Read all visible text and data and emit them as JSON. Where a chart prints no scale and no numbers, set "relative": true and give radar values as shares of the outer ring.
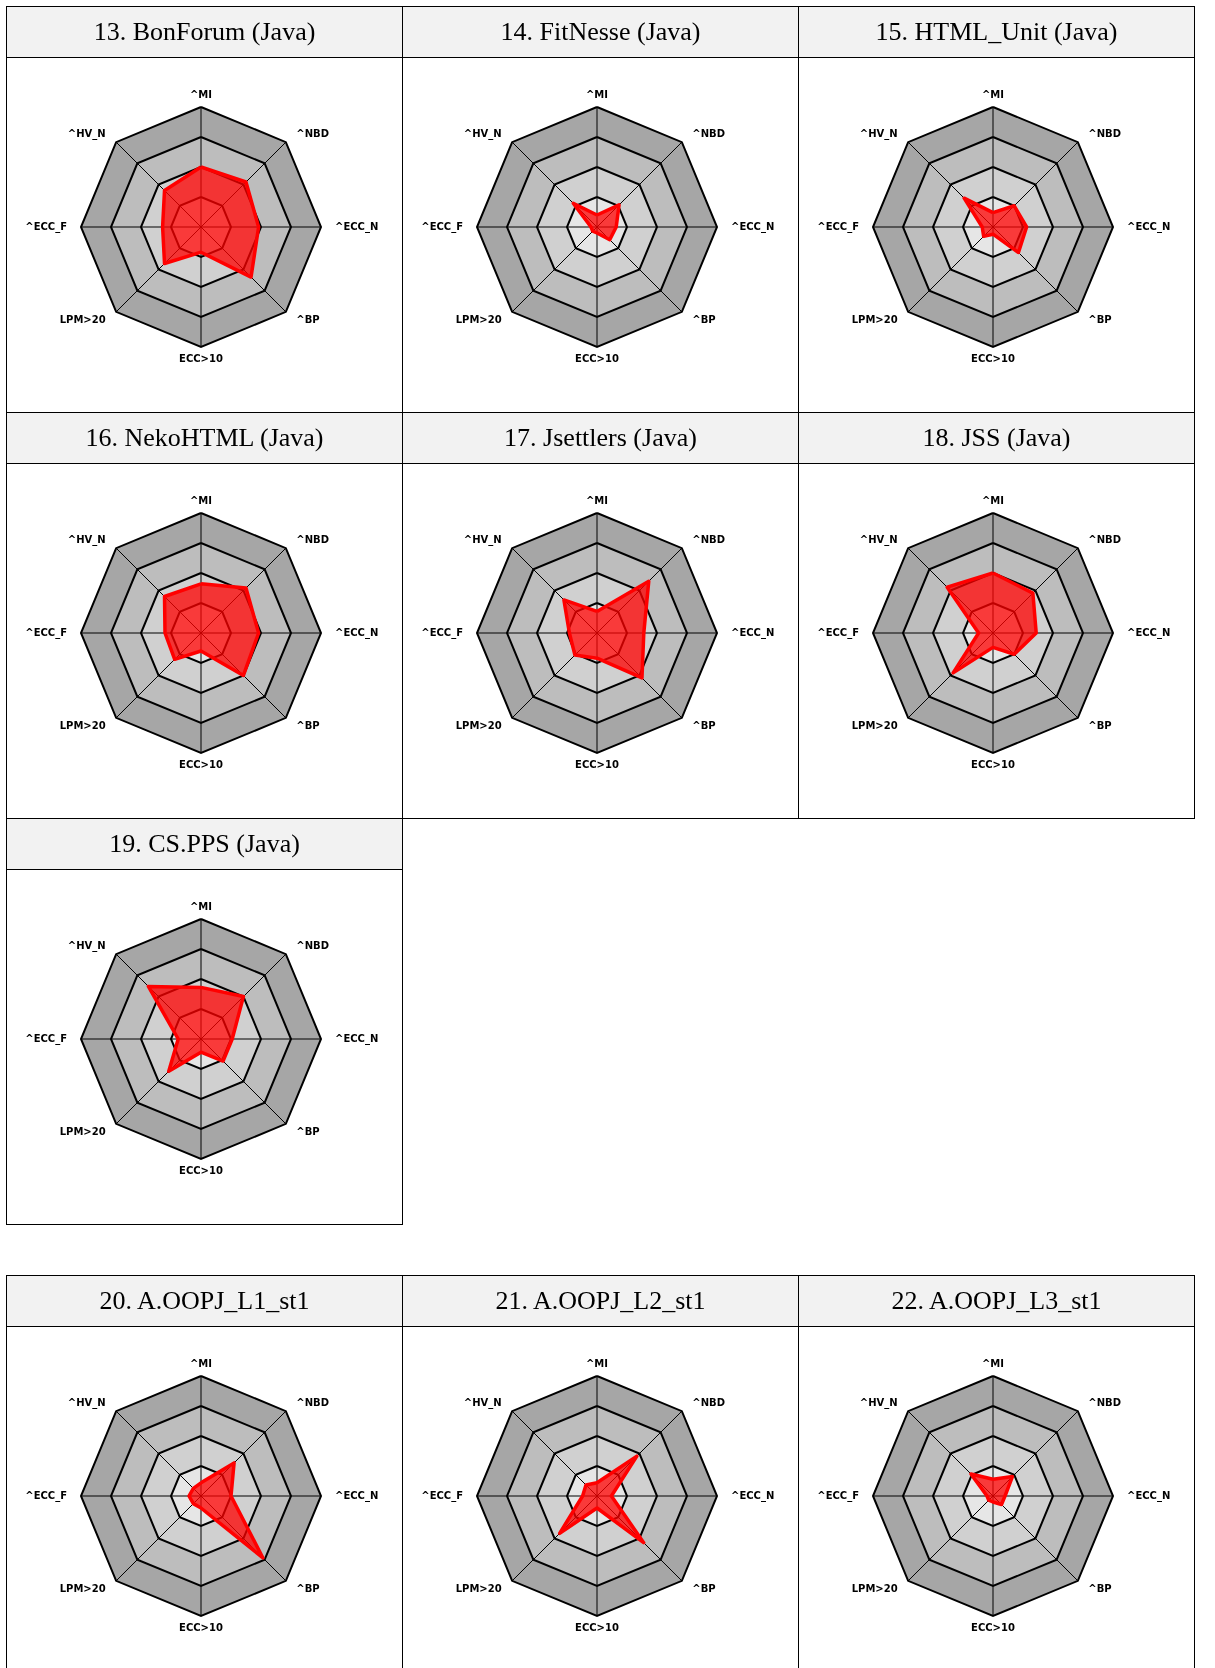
{
  "chart_data": [
    {
      "type": "radar",
      "title": "13. BonForum (Java)",
      "categories": [
        "^MI",
        "^NBD",
        "^ECC_N",
        "^BP",
        "ECC>10",
        "LPM>20",
        "^ECC_F",
        "^HV_N"
      ],
      "relative": true,
      "grid": true,
      "series": [
        {
          "color": "#ff0000",
          "values": [
            0.5,
            0.53,
            0.48,
            0.59,
            0.21,
            0.43,
            0.32,
            0.43
          ]
        }
      ]
    },
    {
      "type": "radar",
      "title": "14. FitNesse (Java)",
      "categories": [
        "^MI",
        "^NBD",
        "^ECC_N",
        "^BP",
        "ECC>10",
        "LPM>20",
        "^ECC_F",
        "^HV_N"
      ],
      "relative": true,
      "grid": true,
      "series": [
        {
          "color": "#ff0000",
          "values": [
            0.1,
            0.26,
            0.16,
            0.15,
            0.05,
            0.05,
            0.05,
            0.28
          ]
        }
      ]
    },
    {
      "type": "radar",
      "title": "15. HTML_Unit (Java)",
      "categories": [
        "^MI",
        "^NBD",
        "^ECC_N",
        "^BP",
        "ECC>10",
        "LPM>20",
        "^ECC_F",
        "^HV_N"
      ],
      "relative": true,
      "grid": true,
      "series": [
        {
          "color": "#ff0000",
          "values": [
            0.12,
            0.25,
            0.28,
            0.3,
            0.06,
            0.11,
            0.09,
            0.34
          ]
        }
      ]
    },
    {
      "type": "radar",
      "title": "16. NekoHTML (Java)",
      "categories": [
        "^MI",
        "^NBD",
        "^ECC_N",
        "^BP",
        "ECC>10",
        "LPM>20",
        "^ECC_F",
        "^HV_N"
      ],
      "relative": true,
      "grid": true,
      "series": [
        {
          "color": "#ff0000",
          "values": [
            0.41,
            0.53,
            0.48,
            0.5,
            0.15,
            0.31,
            0.3,
            0.43
          ]
        }
      ]
    },
    {
      "type": "radar",
      "title": "17. Jsettlers (Java)",
      "categories": [
        "^MI",
        "^NBD",
        "^ECC_N",
        "^BP",
        "ECC>10",
        "LPM>20",
        "^ECC_F",
        "^HV_N"
      ],
      "relative": true,
      "grid": true,
      "series": [
        {
          "color": "#ff0000",
          "values": [
            0.18,
            0.61,
            0.39,
            0.53,
            0.21,
            0.26,
            0.23,
            0.39
          ]
        }
      ]
    },
    {
      "type": "radar",
      "title": "18. JSS (Java)",
      "categories": [
        "^MI",
        "^NBD",
        "^ECC_N",
        "^BP",
        "ECC>10",
        "LPM>20",
        "^ECC_F",
        "^HV_N"
      ],
      "relative": true,
      "grid": true,
      "series": [
        {
          "color": "#ff0000",
          "values": [
            0.5,
            0.47,
            0.36,
            0.25,
            0.12,
            0.47,
            0.12,
            0.54
          ]
        }
      ]
    },
    {
      "type": "radar",
      "title": "19. CS.PPS (Java)",
      "categories": [
        "^MI",
        "^NBD",
        "^ECC_N",
        "^BP",
        "ECC>10",
        "LPM>20",
        "^ECC_F",
        "^HV_N"
      ],
      "relative": true,
      "grid": true,
      "series": [
        {
          "color": "#ff0000",
          "values": [
            0.43,
            0.5,
            0.26,
            0.26,
            0.11,
            0.38,
            0.19,
            0.62
          ]
        }
      ]
    },
    {
      "type": "radar",
      "title": "20. A.OOPJ_L1_st1",
      "categories": [
        "^MI",
        "^NBD",
        "^ECC_N",
        "^BP",
        "ECC>10",
        "LPM>20",
        "^ECC_F",
        "^HV_N"
      ],
      "relative": true,
      "grid": true,
      "series": [
        {
          "color": "#ff0000",
          "values": [
            0.11,
            0.39,
            0.25,
            0.73,
            0.1,
            0.09,
            0.1,
            0.09
          ]
        }
      ]
    },
    {
      "type": "radar",
      "title": "21. A.OOPJ_L2_st1",
      "categories": [
        "^MI",
        "^NBD",
        "^ECC_N",
        "^BP",
        "ECC>10",
        "LPM>20",
        "^ECC_F",
        "^HV_N"
      ],
      "relative": true,
      "grid": true,
      "series": [
        {
          "color": "#ff0000",
          "values": [
            0.11,
            0.47,
            0.12,
            0.55,
            0.1,
            0.44,
            0.12,
            0.13
          ]
        }
      ]
    },
    {
      "type": "radar",
      "title": "22. A.OOPJ_L3_st1",
      "categories": [
        "^MI",
        "^NBD",
        "^ECC_N",
        "^BP",
        "ECC>10",
        "LPM>20",
        "^ECC_F",
        "^HV_N"
      ],
      "relative": true,
      "grid": true,
      "series": [
        {
          "color": "#ff0000",
          "values": [
            0.14,
            0.23,
            0.1,
            0.1,
            0.05,
            0.05,
            0.05,
            0.26
          ]
        }
      ]
    }
  ]
}
